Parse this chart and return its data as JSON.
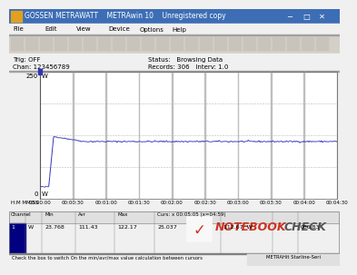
{
  "title": "GOSSEN METRAWATT    METRAwin 10    Unregistered copy",
  "tag_off": "Trig: OFF",
  "chan": "Chan: 123456789",
  "status": "Status:   Browsing Data",
  "records": "Records: 306   Interv: 1.0",
  "y_max": 250,
  "y_min": 0,
  "x_ticks": [
    "00:00:00",
    "00:00:30",
    "00:01:00",
    "00:01:30",
    "00:02:00",
    "00:02:30",
    "00:03:00",
    "00:03:30",
    "00:04:00",
    "00:04:30"
  ],
  "x_label_left": "H:M MM:SS",
  "idle_power": 23.768,
  "peak_power": 122.17,
  "stable_power": 112.67,
  "avg_power": 111.43,
  "cursor_text": "Curs: x 00:05:05 (x=04:59)",
  "cursor_val": "25.037",
  "cursor_power": "112.67  W",
  "col_headers": [
    "Channel",
    "",
    "Min",
    "Avr",
    "Max",
    "Curs: x 00:05:05 (x=04:59)",
    "",
    "",
    ""
  ],
  "row_vals": [
    "1",
    "W",
    "23.768",
    "111.43",
    "122.17",
    "25.037",
    "112.67  W",
    "",
    "086.83"
  ],
  "bottom_left": "Check the box to switch On the min/avr/max value calculation between cursors",
  "bottom_right": "METRAHit Starline-Seri",
  "bg_color": "#f0f0f0",
  "plot_bg": "#ffffff",
  "line_color": "#3333bb",
  "grid_color": "#b0b0b0",
  "total_points": 306,
  "idle_pts": 10,
  "rise_pts": 5,
  "decay_pts": 30
}
